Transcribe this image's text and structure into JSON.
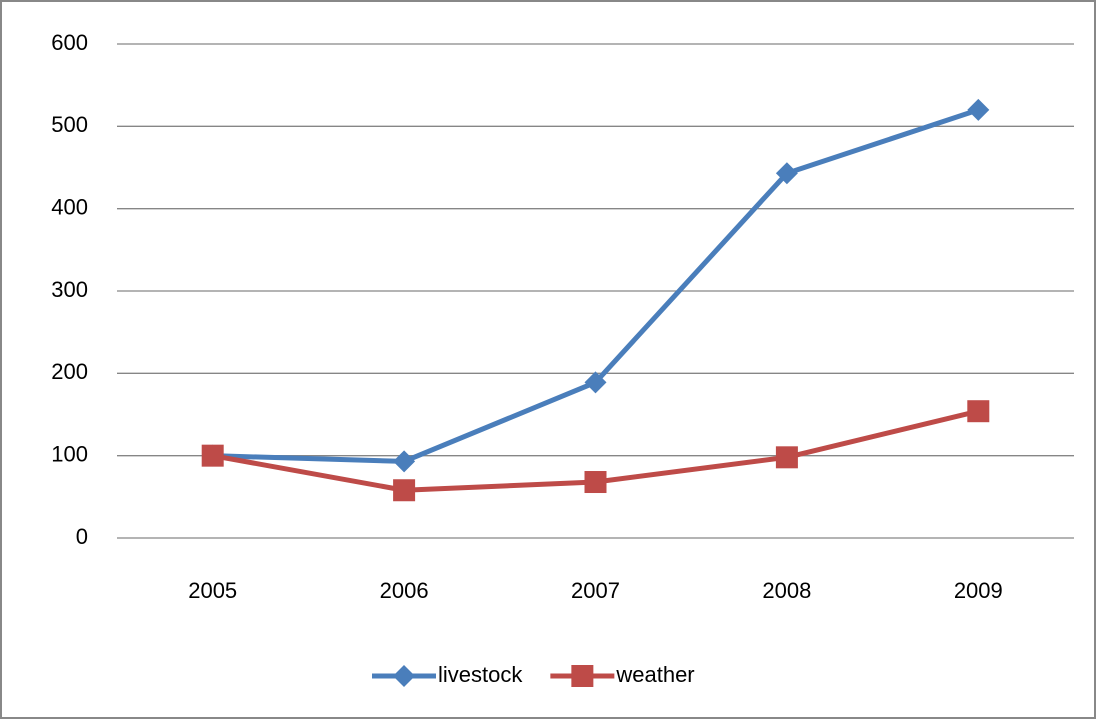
{
  "chart_data": {
    "type": "line",
    "categories": [
      "2005",
      "2006",
      "2007",
      "2008",
      "2009"
    ],
    "series": [
      {
        "name": "livestock",
        "color": "#4a7ebb",
        "marker": "diamond",
        "values": [
          100,
          93,
          189,
          443,
          520
        ]
      },
      {
        "name": "weather",
        "color": "#be4b48",
        "marker": "square",
        "values": [
          100,
          58,
          68,
          98,
          154
        ]
      }
    ],
    "ylim": [
      0,
      600
    ],
    "yticks": [
      0,
      100,
      200,
      300,
      400,
      500,
      600
    ],
    "grid": true,
    "legend": "bottom"
  }
}
